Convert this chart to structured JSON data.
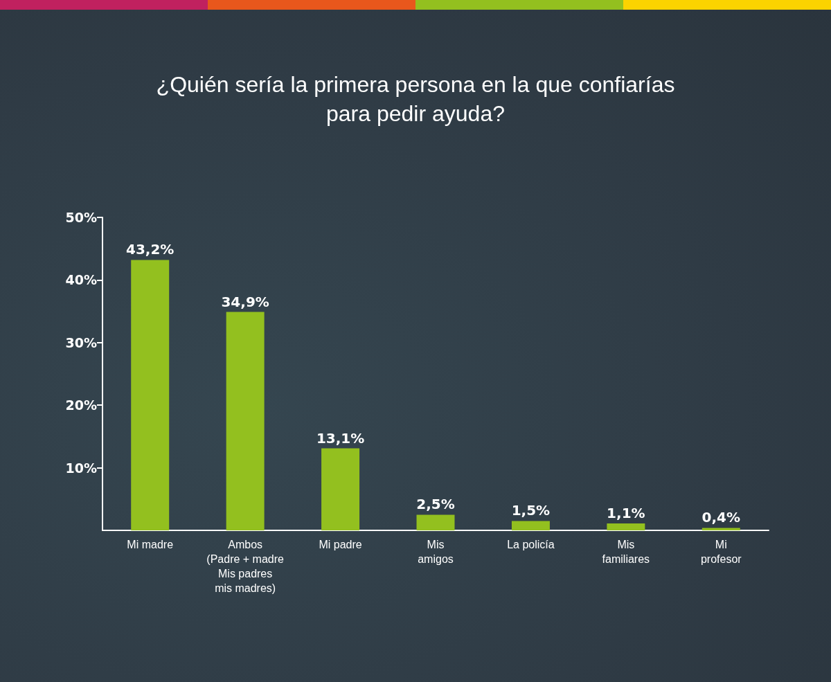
{
  "chart_data": {
    "type": "bar",
    "title": "¿Quién sería la primera persona en la que confiarías\npara pedir ayuda?",
    "categories": [
      "Mi madre",
      "Ambos\n(Padre + madre\nMis padres\nmis madres)",
      "Mi padre",
      "Mis\namigos",
      "La policía",
      "Mis\nfamiliares",
      "Mi\nprofesor"
    ],
    "values": [
      43.2,
      34.9,
      13.1,
      2.5,
      1.5,
      1.1,
      0.4
    ],
    "value_labels": [
      "43,2%",
      "34,9%",
      "13,1%",
      "2,5%",
      "1,5%",
      "1,1%",
      "0,4%"
    ],
    "color": "#93c01f",
    "ylim": [
      0,
      50
    ],
    "yticks": [
      {
        "value": 10,
        "label": "10%"
      },
      {
        "value": 20,
        "label": "20%"
      },
      {
        "value": 30,
        "label": "30%"
      },
      {
        "value": 40,
        "label": "40%"
      },
      {
        "value": 50,
        "label": "50%"
      }
    ]
  }
}
